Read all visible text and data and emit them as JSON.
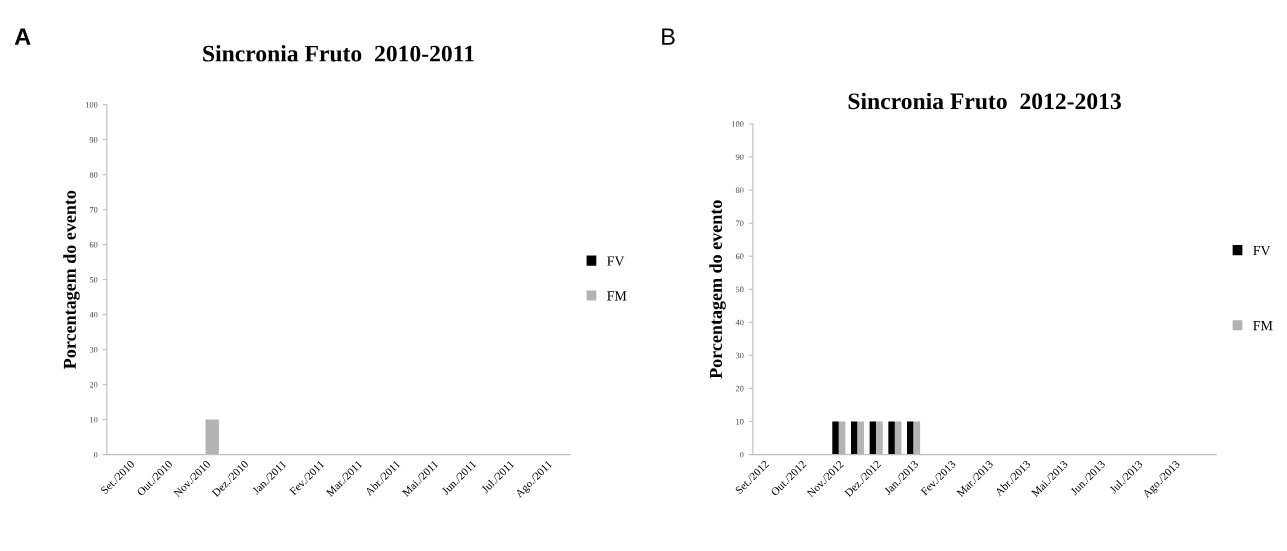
{
  "chart_data": [
    {
      "type": "bar",
      "title": "Sincronia Fruto  2010-2011",
      "ylabel": "Porcentagem do evento",
      "annotations": [
        "A"
      ],
      "categories": [
        "Set./2010",
        "Out./2010",
        "Nov./2010",
        "Dez./2010",
        "Jan./2011",
        "Fev./2011",
        "Mar./2011",
        "Abr./2011",
        "Mai./2011",
        "Jun./2011",
        "Jul./2011",
        "Ago./2011"
      ],
      "series": [
        {
          "name": "FV",
          "color": "#000000",
          "values": [
            0,
            0,
            0,
            0,
            0,
            0,
            0,
            0,
            0,
            0,
            0,
            0
          ]
        },
        {
          "name": "FM",
          "color": "#b3b3b3",
          "values": [
            0,
            0,
            10,
            0,
            0,
            0,
            0,
            0,
            0,
            0,
            0,
            0
          ]
        }
      ],
      "ylim": [
        0,
        100
      ],
      "yticks": [
        0,
        10,
        20,
        30,
        40,
        50,
        60,
        70,
        80,
        90,
        100
      ],
      "grid": false,
      "legend": "right"
    },
    {
      "type": "bar",
      "title": "Sincronia Fruto  2012-2013",
      "ylabel": "Porcentagem do evento",
      "annotations": [
        "B"
      ],
      "categories": [
        "Set./2012",
        null,
        "Out./2012",
        null,
        "Nov./2012",
        null,
        "Dez./2012",
        null,
        "Jan./2013",
        null,
        "Fev./2013",
        null,
        "Mar./2013",
        null,
        "Abr./2013",
        null,
        "Mai./2013",
        null,
        "Jun./2013",
        null,
        "Jul./2013",
        null,
        "Ago./2013",
        null
      ],
      "series": [
        {
          "name": "FV",
          "color": "#000000",
          "values": [
            0,
            0,
            0,
            0,
            10,
            10,
            10,
            10,
            10,
            0,
            0,
            0,
            0,
            0,
            0,
            0,
            0,
            0,
            0,
            0,
            0,
            0,
            0,
            0
          ]
        },
        {
          "name": "FM",
          "color": "#b3b3b3",
          "values": [
            0,
            0,
            0,
            0,
            10,
            10,
            10,
            10,
            10,
            0,
            0,
            0,
            0,
            0,
            0,
            0,
            0,
            0,
            0,
            0,
            0,
            0,
            0,
            0
          ]
        }
      ],
      "ylim": [
        0,
        100
      ],
      "yticks": [
        0,
        10,
        20,
        30,
        40,
        50,
        60,
        70,
        80,
        90,
        100
      ],
      "grid": false,
      "legend": "right"
    }
  ]
}
